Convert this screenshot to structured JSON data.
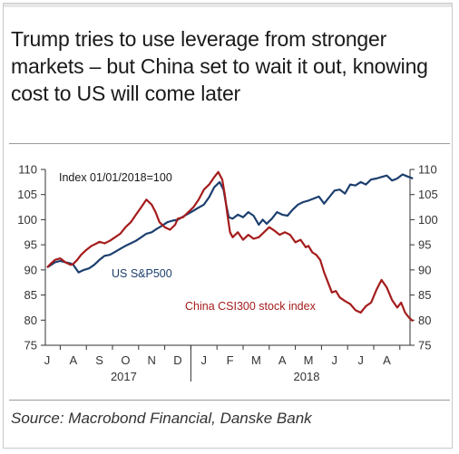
{
  "title": "Trump tries to use leverage from stronger markets – but China set to wait it out, knowing cost to US will come later",
  "source": "Source: Macrobond Financial, Danske Bank",
  "chart_data": {
    "type": "line",
    "index_note": "Index 01/01/2018=100",
    "ylim": [
      75,
      110
    ],
    "yticks": [
      75,
      80,
      85,
      90,
      95,
      100,
      105,
      110
    ],
    "month_labels": [
      "J",
      "A",
      "S",
      "O",
      "N",
      "D",
      "J",
      "F",
      "M",
      "A",
      "M",
      "J",
      "J",
      "A"
    ],
    "year_labels": [
      {
        "label": "2017",
        "month_index": 3
      },
      {
        "label": "2018",
        "month_index": 10
      }
    ],
    "colors": {
      "sp500": "#1c3f6e",
      "csi300": "#a51c1c"
    },
    "series": [
      {
        "name": "US S&P500",
        "key": "sp500",
        "x": [
          0,
          0.15,
          0.3,
          0.5,
          0.7,
          0.9,
          1.0,
          1.2,
          1.4,
          1.6,
          1.8,
          2.0,
          2.2,
          2.4,
          2.6,
          2.8,
          3.0,
          3.2,
          3.4,
          3.6,
          3.8,
          4.0,
          4.2,
          4.4,
          4.6,
          4.8,
          5.0,
          5.2,
          5.4,
          5.6,
          5.8,
          6.0,
          6.2,
          6.4,
          6.6,
          6.75,
          6.85,
          6.95,
          7.1,
          7.3,
          7.5,
          7.7,
          7.9,
          8.1,
          8.25,
          8.4,
          8.6,
          8.8,
          9.0,
          9.2,
          9.4,
          9.6,
          9.8,
          10.0,
          10.2,
          10.4,
          10.6,
          10.8,
          11.0,
          11.2,
          11.4,
          11.6,
          11.8,
          12.0,
          12.2,
          12.4,
          12.6,
          12.8,
          13.0,
          13.2,
          13.4,
          13.6,
          13.8,
          14.0
        ],
        "values": [
          90.5,
          91.0,
          91.5,
          91.8,
          91.5,
          91.3,
          91.0,
          89.5,
          90.0,
          90.3,
          91.0,
          92.0,
          92.8,
          93.0,
          93.6,
          94.2,
          94.8,
          95.3,
          95.8,
          96.5,
          97.2,
          97.5,
          98.2,
          98.8,
          99.5,
          99.8,
          100.0,
          100.6,
          101.2,
          101.8,
          102.4,
          103.0,
          104.5,
          106.5,
          107.5,
          106.0,
          103.0,
          100.5,
          100.2,
          101.0,
          100.5,
          101.5,
          100.8,
          99.0,
          100.0,
          99.2,
          100.2,
          101.5,
          101.0,
          100.8,
          102.0,
          103.0,
          103.5,
          103.8,
          104.2,
          104.6,
          103.2,
          104.5,
          105.8,
          106.0,
          105.2,
          107.0,
          106.8,
          107.5,
          107.0,
          108.0,
          108.2,
          108.5,
          108.8,
          107.8,
          108.2,
          109.0,
          108.6,
          108.2
        ]
      },
      {
        "name": "China CSI300 stock index",
        "key": "csi300",
        "x": [
          0,
          0.15,
          0.3,
          0.5,
          0.7,
          0.9,
          1.0,
          1.15,
          1.3,
          1.5,
          1.7,
          1.9,
          2.0,
          2.2,
          2.4,
          2.6,
          2.8,
          3.0,
          3.2,
          3.4,
          3.6,
          3.8,
          4.0,
          4.15,
          4.3,
          4.5,
          4.7,
          4.9,
          5.0,
          5.2,
          5.4,
          5.6,
          5.8,
          6.0,
          6.2,
          6.4,
          6.55,
          6.7,
          6.8,
          6.9,
          7.0,
          7.1,
          7.3,
          7.5,
          7.7,
          7.9,
          8.1,
          8.3,
          8.5,
          8.7,
          8.9,
          9.1,
          9.3,
          9.5,
          9.7,
          9.9,
          10.0,
          10.15,
          10.3,
          10.45,
          10.6,
          10.75,
          10.9,
          11.05,
          11.2,
          11.4,
          11.6,
          11.8,
          12.0,
          12.2,
          12.4,
          12.6,
          12.8,
          13.0,
          13.2,
          13.4,
          13.55,
          13.7,
          13.85,
          14.0
        ],
        "values": [
          90.5,
          91.3,
          92.0,
          92.3,
          91.5,
          91.0,
          91.2,
          92.0,
          93.0,
          94.0,
          94.8,
          95.3,
          95.6,
          95.3,
          95.8,
          96.5,
          97.2,
          98.5,
          99.5,
          101.0,
          102.5,
          104.0,
          103.0,
          101.5,
          99.5,
          98.5,
          98.0,
          99.0,
          100.2,
          100.5,
          101.5,
          102.5,
          104.0,
          106.0,
          107.0,
          108.5,
          109.5,
          108.0,
          105.0,
          101.0,
          97.5,
          96.5,
          97.5,
          96.0,
          97.0,
          96.2,
          96.5,
          97.5,
          98.5,
          97.8,
          97.0,
          97.5,
          97.0,
          95.5,
          96.0,
          94.5,
          94.8,
          93.5,
          93.0,
          92.0,
          89.5,
          87.5,
          85.5,
          85.8,
          84.5,
          83.8,
          83.2,
          82.0,
          81.5,
          82.8,
          83.5,
          86.0,
          88.0,
          86.5,
          84.0,
          82.5,
          83.5,
          81.5,
          80.5,
          79.8
        ]
      }
    ]
  }
}
